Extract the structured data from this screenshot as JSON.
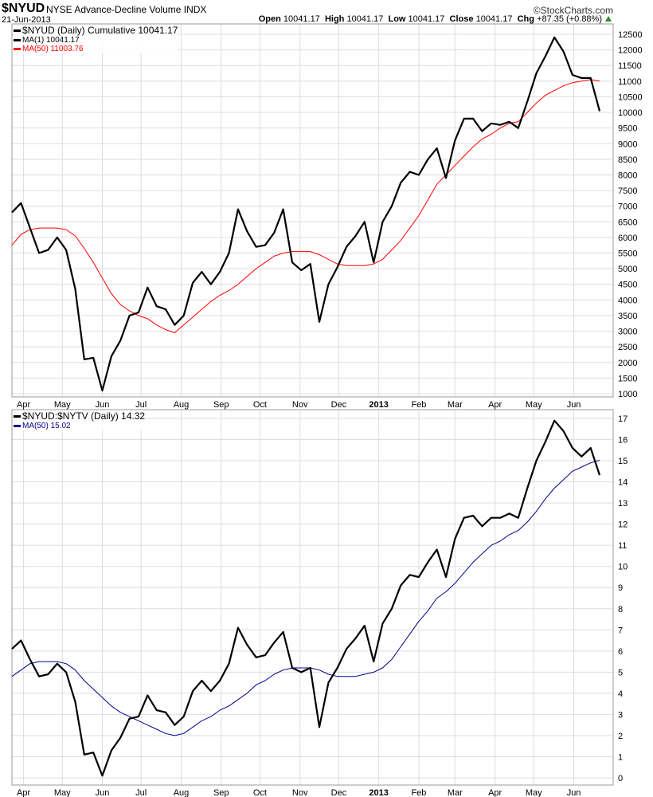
{
  "header": {
    "symbol": "$NYUD",
    "name": "NYSE Advance-Decline Volume INDX",
    "watermark": "©StockCharts.com",
    "date": "21-Jun-2013",
    "open_label": "Open",
    "open": "10041.17",
    "high_label": "High",
    "high": "10041.17",
    "low_label": "Low",
    "low": "10041.17",
    "close_label": "Close",
    "close": "10041.17",
    "chg_label": "Chg",
    "chg": "+87.35 (+0.88%)",
    "up_color": "#2a8a2a"
  },
  "chart_data": [
    {
      "type": "line",
      "title": "",
      "ylim": [
        1000,
        12500
      ],
      "grid": true,
      "legend": "top-left",
      "legend_entries": [
        "$NYUD (Daily) Cumulative 10041.17",
        "MA(1) 10041.17",
        "MA(50) 11003.76"
      ],
      "y_ticks": [
        1000,
        1500,
        2000,
        2500,
        3000,
        3500,
        4000,
        4500,
        5000,
        5500,
        6000,
        6500,
        7000,
        7500,
        8000,
        8500,
        9000,
        9500,
        10000,
        10500,
        11000,
        11500,
        12000,
        12500
      ],
      "x_ticks": [
        "Apr",
        "May",
        "Jun",
        "Jul",
        "Aug",
        "Sep",
        "Oct",
        "Nov",
        "Dec",
        "2013",
        "Feb",
        "Mar",
        "Apr",
        "May",
        "Jun"
      ],
      "series": [
        {
          "name": "$NYUD (Daily) Cumulative",
          "color": "#000000",
          "values": [
            6800,
            7100,
            6300,
            5500,
            5600,
            6000,
            5600,
            4350,
            2100,
            2150,
            1100,
            2200,
            2700,
            3500,
            3600,
            4400,
            3800,
            3700,
            3200,
            3500,
            4550,
            4900,
            4500,
            4900,
            5500,
            6900,
            6200,
            5700,
            5750,
            6150,
            6900,
            5200,
            4950,
            5150,
            3300,
            4500,
            5050,
            5700,
            6050,
            6500,
            5200,
            6500,
            7000,
            7750,
            8100,
            8000,
            8500,
            8850,
            7900,
            9100,
            9800,
            9800,
            9400,
            9650,
            9600,
            9700,
            9500,
            10350,
            11250,
            11800,
            12400,
            11950,
            11200,
            11100,
            11100,
            10041.17
          ]
        },
        {
          "name": "MA(50)",
          "color": "#ff0000",
          "values": [
            5750,
            6100,
            6250,
            6300,
            6300,
            6300,
            6250,
            6050,
            5650,
            5200,
            4700,
            4200,
            3850,
            3650,
            3500,
            3400,
            3200,
            3050,
            2950,
            3200,
            3450,
            3700,
            3950,
            4150,
            4300,
            4500,
            4750,
            5000,
            5200,
            5400,
            5500,
            5550,
            5550,
            5550,
            5450,
            5300,
            5150,
            5100,
            5100,
            5100,
            5150,
            5300,
            5600,
            5900,
            6300,
            6700,
            7200,
            7700,
            8000,
            8300,
            8600,
            8900,
            9150,
            9300,
            9500,
            9650,
            9700,
            10000,
            10300,
            10550,
            10700,
            10850,
            10950,
            11000,
            11050,
            11003.76
          ]
        }
      ]
    },
    {
      "type": "line",
      "title": "",
      "ylim": [
        0,
        17
      ],
      "grid": true,
      "legend": "top-left",
      "legend_entries": [
        "$NYUD:$NYTV (Daily) 14.32",
        "MA(50) 15.02"
      ],
      "y_ticks": [
        0,
        1,
        2,
        3,
        4,
        5,
        6,
        7,
        8,
        9,
        10,
        11,
        12,
        13,
        14,
        15,
        16,
        17
      ],
      "x_ticks": [
        "Apr",
        "May",
        "Jun",
        "Jul",
        "Aug",
        "Sep",
        "Oct",
        "Nov",
        "Dec",
        "2013",
        "Feb",
        "Mar",
        "Apr",
        "May",
        "Jun"
      ],
      "series": [
        {
          "name": "$NYUD:$NYTV (Daily)",
          "color": "#000000",
          "values": [
            6.1,
            6.5,
            5.6,
            4.8,
            4.9,
            5.4,
            5.0,
            3.6,
            1.1,
            1.2,
            0.1,
            1.3,
            1.9,
            2.8,
            2.9,
            3.9,
            3.2,
            3.1,
            2.5,
            2.9,
            4.1,
            4.6,
            4.1,
            4.6,
            5.4,
            7.1,
            6.3,
            5.7,
            5.8,
            6.4,
            6.9,
            5.2,
            5.0,
            5.2,
            2.4,
            4.5,
            5.2,
            6.1,
            6.6,
            7.2,
            5.5,
            7.3,
            8.0,
            9.1,
            9.6,
            9.5,
            10.2,
            10.8,
            9.5,
            11.3,
            12.3,
            12.4,
            11.9,
            12.3,
            12.3,
            12.5,
            12.3,
            13.7,
            15.0,
            15.9,
            16.9,
            16.4,
            15.6,
            15.2,
            15.6,
            14.32
          ]
        },
        {
          "name": "MA(50)",
          "color": "#00008b",
          "values": [
            4.8,
            5.1,
            5.4,
            5.5,
            5.5,
            5.5,
            5.4,
            5.1,
            4.6,
            4.2,
            3.8,
            3.4,
            3.1,
            2.9,
            2.7,
            2.5,
            2.3,
            2.1,
            2.0,
            2.1,
            2.4,
            2.7,
            2.9,
            3.2,
            3.4,
            3.7,
            4.0,
            4.4,
            4.6,
            4.9,
            5.1,
            5.2,
            5.2,
            5.2,
            5.1,
            4.9,
            4.8,
            4.8,
            4.8,
            4.9,
            5.0,
            5.2,
            5.6,
            6.2,
            6.8,
            7.4,
            7.9,
            8.5,
            8.8,
            9.2,
            9.7,
            10.2,
            10.6,
            11.0,
            11.2,
            11.5,
            11.7,
            12.1,
            12.6,
            13.2,
            13.7,
            14.1,
            14.5,
            14.7,
            14.9,
            15.02
          ]
        }
      ]
    }
  ],
  "x_dates": [
    "2012-03-23",
    "2012-03-30",
    "2012-04-06",
    "2012-04-13",
    "2012-04-20",
    "2012-04-27",
    "2012-05-04",
    "2012-05-11",
    "2012-05-18",
    "2012-05-25",
    "2012-06-01",
    "2012-06-08",
    "2012-06-15",
    "2012-06-22",
    "2012-06-29",
    "2012-07-06",
    "2012-07-13",
    "2012-07-20",
    "2012-07-27",
    "2012-08-03",
    "2012-08-10",
    "2012-08-17",
    "2012-08-24",
    "2012-08-31",
    "2012-09-07",
    "2012-09-14",
    "2012-09-21",
    "2012-09-28",
    "2012-10-05",
    "2012-10-12",
    "2012-10-19",
    "2012-10-26",
    "2012-11-02",
    "2012-11-09",
    "2012-11-16",
    "2012-11-23",
    "2012-11-30",
    "2012-12-07",
    "2012-12-14",
    "2012-12-21",
    "2012-12-28",
    "2013-01-04",
    "2013-01-11",
    "2013-01-18",
    "2013-01-25",
    "2013-02-01",
    "2013-02-08",
    "2013-02-15",
    "2013-02-22",
    "2013-03-01",
    "2013-03-08",
    "2013-03-15",
    "2013-03-22",
    "2013-03-29",
    "2013-04-05",
    "2013-04-12",
    "2013-04-19",
    "2013-04-26",
    "2013-05-03",
    "2013-05-10",
    "2013-05-17",
    "2013-05-24",
    "2013-05-31",
    "2013-06-07",
    "2013-06-14",
    "2013-06-21"
  ],
  "x_tick_dates": [
    "2012-04-01",
    "2012-05-01",
    "2012-06-01",
    "2012-07-01",
    "2012-08-01",
    "2012-09-01",
    "2012-10-01",
    "2012-11-01",
    "2012-12-01",
    "2013-01-01",
    "2013-02-01",
    "2013-03-01",
    "2013-04-01",
    "2013-05-01",
    "2013-06-01"
  ]
}
